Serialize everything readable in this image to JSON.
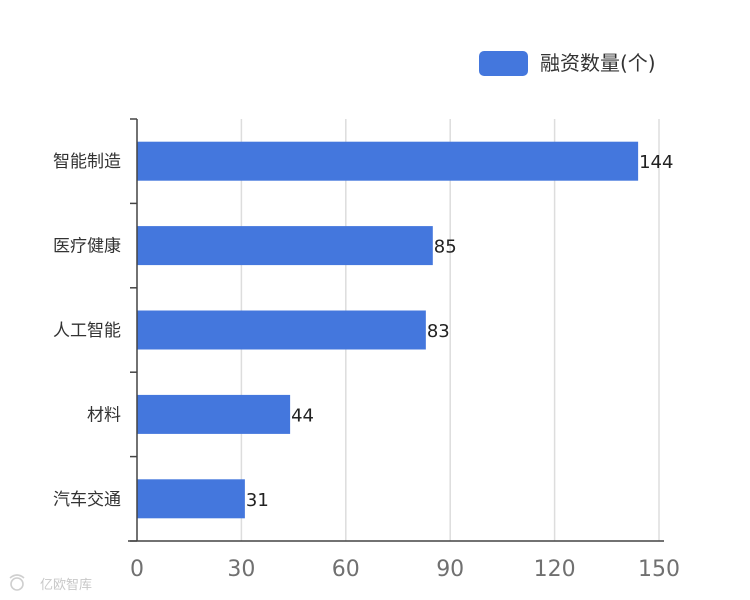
{
  "chart_data": {
    "type": "bar",
    "orientation": "horizontal",
    "categories": [
      "智能制造",
      "医疗健康",
      "人工智能",
      "材料",
      "汽车交通"
    ],
    "series": [
      {
        "name": "融资数量(个)",
        "values": [
          144,
          85,
          83,
          44,
          31
        ]
      }
    ],
    "xlim": [
      0,
      150
    ],
    "xticks": [
      0,
      30,
      60,
      90,
      120,
      150
    ],
    "grid": "vertical",
    "legend_position": "top-right",
    "bar_color": "#4477dd",
    "grid_color": "#dddddd",
    "axis_color": "#444444"
  },
  "watermark": {
    "text": "亿欧智库"
  }
}
